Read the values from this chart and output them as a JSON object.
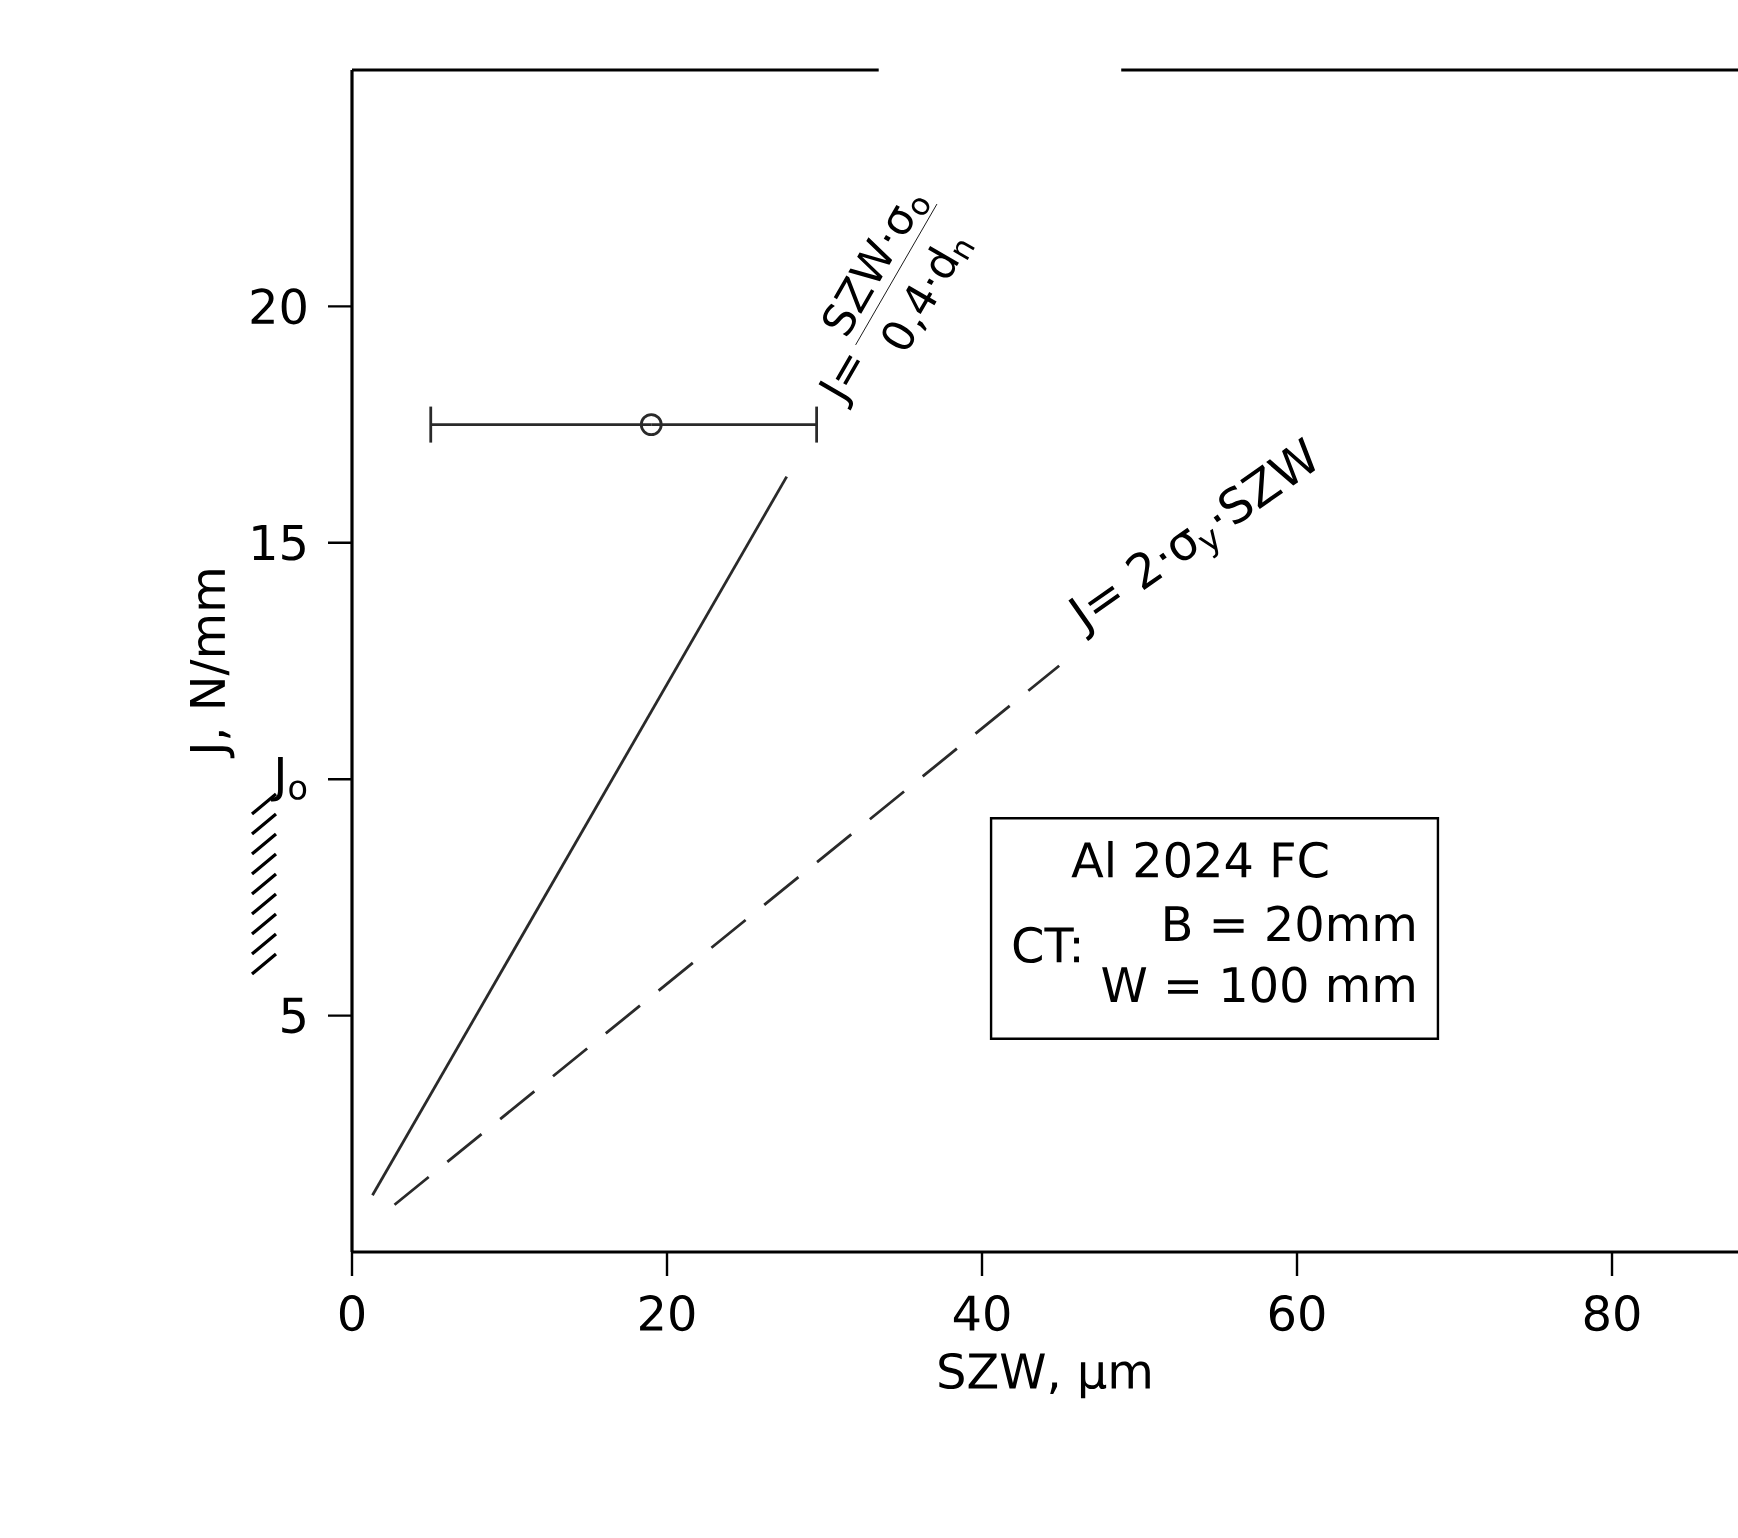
{
  "chart_data": {
    "type": "line",
    "xlabel": "SZW, μm",
    "ylabel": "J, N/mm",
    "xlim": [
      0,
      88
    ],
    "ylim": [
      0,
      25
    ],
    "xticks": [
      0,
      20,
      40,
      60,
      80
    ],
    "yticks": [
      5,
      {
        "value": 10,
        "label": "J$_{o}$"
      },
      15,
      20
    ],
    "grid": false,
    "series": [
      {
        "color": "#2a2a2a",
        "line_style": "solid",
        "marker": "none",
        "x": [
          1.3,
          27.6
        ],
        "values": [
          1.2,
          16.4
        ]
      },
      {
        "color": "#2a2a2a",
        "line_style": "dashed",
        "marker": "none",
        "x": [
          2.7,
          44.9
        ],
        "values": [
          1.0,
          12.4
        ]
      },
      {
        "type": "scatter",
        "color": "#2a2a2a",
        "marker": "circle",
        "x": [
          19
        ],
        "values": [
          17.5
        ],
        "xerrors": [
          [
            5,
            29.5
          ]
        ]
      }
    ],
    "annotations": [
      "J=",
      "SZW·σ$_{o}$",
      "0,4·d$_{n}$",
      "J= 2·σ$_{y}$·SZW",
      "Al 2024 FC",
      "CT:",
      "B = 20mm",
      "W = 100 mm"
    ]
  }
}
